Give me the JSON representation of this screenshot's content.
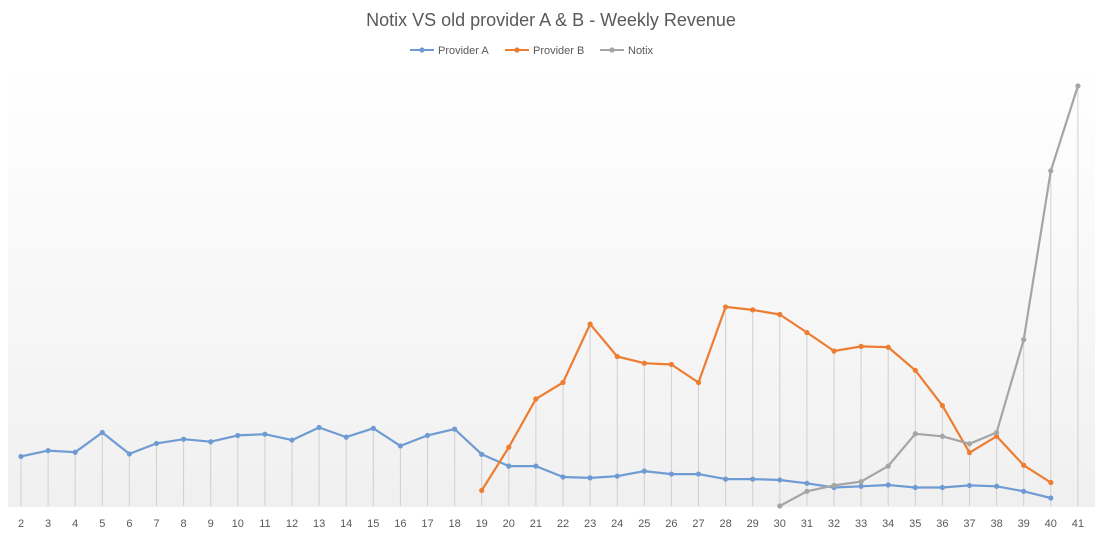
{
  "chart_data": {
    "type": "line",
    "title": "Notix VS old provider A & B - Weekly Revenue",
    "xlabel": "",
    "ylabel": "",
    "ylim": [
      0,
      100
    ],
    "legend": "top-center",
    "grid": "vertical drop lines",
    "x": [
      2,
      3,
      4,
      5,
      6,
      7,
      8,
      9,
      10,
      11,
      12,
      13,
      14,
      15,
      16,
      17,
      18,
      19,
      20,
      21,
      22,
      23,
      24,
      25,
      26,
      27,
      28,
      29,
      30,
      31,
      32,
      33,
      34,
      35,
      36,
      37,
      38,
      39,
      40,
      41
    ],
    "series": [
      {
        "name": "Provider A",
        "color": "#6f9bd3",
        "values": [
          11.8,
          13.2,
          12.8,
          17.5,
          12.4,
          14.9,
          15.9,
          15.3,
          16.8,
          17.1,
          15.7,
          18.7,
          16.4,
          18.5,
          14.3,
          16.8,
          18.3,
          12.3,
          9.5,
          9.5,
          6.9,
          6.7,
          7.1,
          8.3,
          7.6,
          7.6,
          6.4,
          6.4,
          6.2,
          5.4,
          4.4,
          4.7,
          5.0,
          4.4,
          4.4,
          4.9,
          4.7,
          3.5,
          1.9,
          null
        ]
      },
      {
        "name": "Provider B",
        "color": "#ed7d31",
        "values": [
          null,
          null,
          null,
          null,
          null,
          null,
          null,
          null,
          null,
          null,
          null,
          null,
          null,
          null,
          null,
          null,
          null,
          3.7,
          14.0,
          25.5,
          29.4,
          43.3,
          35.6,
          34.0,
          33.7,
          29.4,
          47.4,
          46.7,
          45.6,
          41.3,
          36.9,
          38.0,
          37.8,
          32.3,
          23.9,
          12.7,
          16.6,
          9.7,
          5.6,
          null
        ]
      },
      {
        "name": "Notix",
        "color": "#a5a5a5",
        "values": [
          null,
          null,
          null,
          null,
          null,
          null,
          null,
          null,
          null,
          null,
          null,
          null,
          null,
          null,
          null,
          null,
          null,
          null,
          null,
          null,
          null,
          null,
          null,
          null,
          null,
          null,
          null,
          null,
          0,
          3.5,
          4.9,
          5.8,
          9.5,
          17.2,
          16.6,
          14.8,
          17.5,
          39.6,
          79.8,
          100
        ]
      }
    ]
  }
}
